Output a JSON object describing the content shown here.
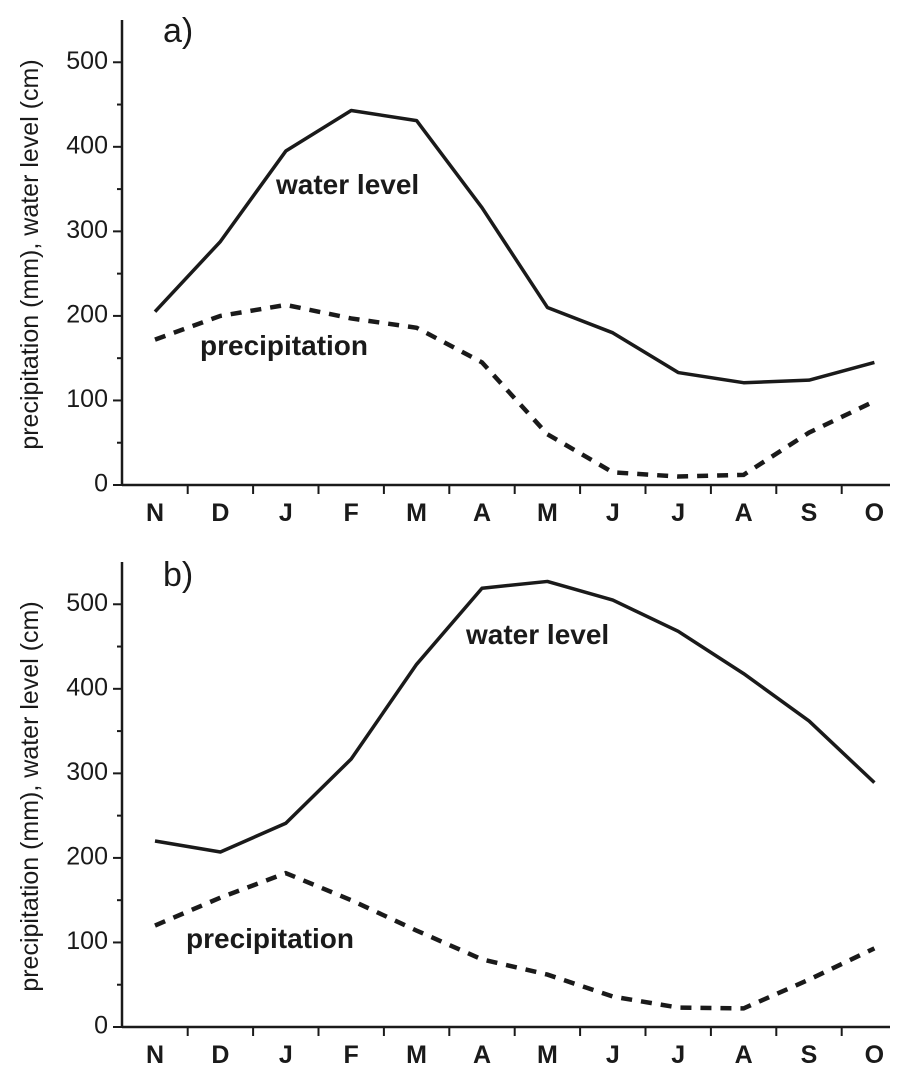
{
  "chart_data": [
    {
      "type": "line",
      "panel_label": "a)",
      "ylabel": "precipitation (mm), water level (cm)",
      "categories": [
        "N",
        "D",
        "J",
        "F",
        "M",
        "A",
        "M",
        "J",
        "J",
        "A",
        "S",
        "O"
      ],
      "yticks": [
        0,
        100,
        200,
        300,
        400,
        500
      ],
      "ylim": [
        0,
        550
      ],
      "series": [
        {
          "name": "water level",
          "style": "solid",
          "values": [
            205,
            288,
            395,
            443,
            431,
            328,
            210,
            180,
            133,
            121,
            124,
            145
          ]
        },
        {
          "name": "precipitation",
          "style": "dashed",
          "values": [
            172,
            200,
            213,
            197,
            186,
            145,
            60,
            15,
            10,
            12,
            62,
            99
          ]
        }
      ]
    },
    {
      "type": "line",
      "panel_label": "b)",
      "ylabel": "precipitation (mm), water level (cm)",
      "categories": [
        "N",
        "D",
        "J",
        "F",
        "M",
        "A",
        "M",
        "J",
        "J",
        "A",
        "S",
        "O"
      ],
      "yticks": [
        0,
        100,
        200,
        300,
        400,
        500
      ],
      "ylim": [
        0,
        550
      ],
      "series": [
        {
          "name": "water level",
          "style": "solid",
          "values": [
            220,
            207,
            241,
            317,
            429,
            519,
            527,
            505,
            468,
            418,
            362,
            289
          ]
        },
        {
          "name": "precipitation",
          "style": "dashed",
          "values": [
            120,
            153,
            182,
            150,
            114,
            80,
            62,
            36,
            23,
            22,
            56,
            93
          ]
        }
      ]
    }
  ]
}
